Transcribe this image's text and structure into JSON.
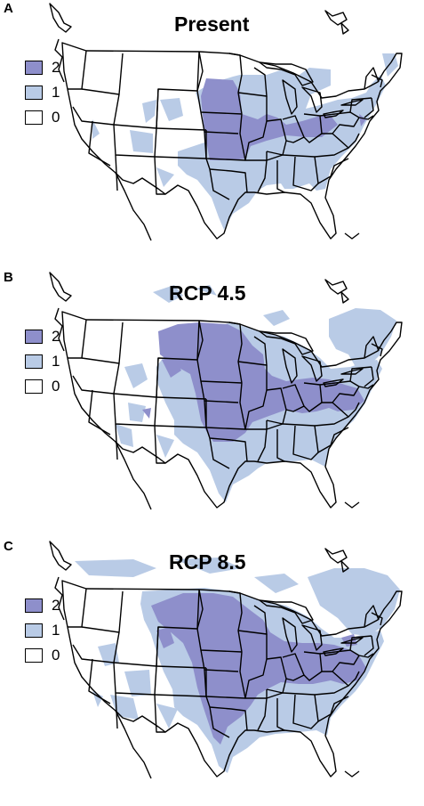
{
  "panels": [
    {
      "letter": "A",
      "title": "Present"
    },
    {
      "letter": "B",
      "title": "RCP 4.5"
    },
    {
      "letter": "C",
      "title": "RCP 8.5"
    }
  ],
  "legend": {
    "items": [
      {
        "label": "2",
        "color": "#8e8fcb"
      },
      {
        "label": "1",
        "color": "#b9cbe6"
      },
      {
        "label": "0",
        "color": "#ffffff"
      }
    ]
  },
  "colors": {
    "level_2": "#8e8fcb",
    "level_1": "#b9cbe6",
    "level_0": "#ffffff",
    "lines": "#000000"
  }
}
